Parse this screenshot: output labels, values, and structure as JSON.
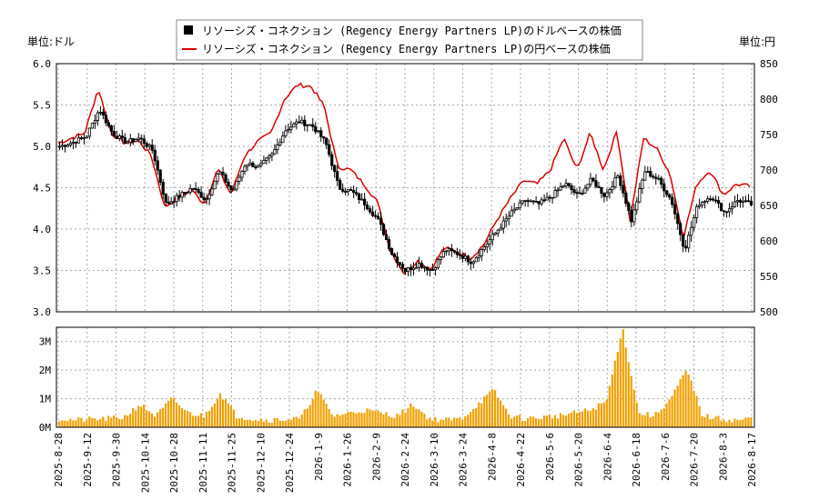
{
  "chart_data": {
    "type": "candlestick+line+bar",
    "legend": {
      "placement": "top-center",
      "entries": [
        {
          "name": "リソーシズ・コネクション (Regency Energy Partners LP)のドルベースの株価",
          "color": "#000000",
          "marker": "square"
        },
        {
          "name": "リソーシズ・コネクション (Regency Energy Partners LP)の円ベースの株価",
          "color": "#dd0000",
          "marker": "line"
        }
      ]
    },
    "left_axis": {
      "label": "単位:ドル",
      "ylim": [
        3.0,
        6.0
      ],
      "ticks": [
        "3.0",
        "3.5",
        "4.0",
        "4.5",
        "5.0",
        "5.5",
        "6.0"
      ]
    },
    "right_axis": {
      "label": "単位:円",
      "ylim": [
        500,
        850
      ],
      "ticks": [
        "500",
        "550",
        "600",
        "650",
        "700",
        "750",
        "800",
        "850"
      ]
    },
    "volume_axis": {
      "ylim": [
        0,
        3500000
      ],
      "ticks": [
        "0M",
        "1M",
        "2M",
        "3M"
      ]
    },
    "grid": true,
    "x_ticks": [
      "2025-8-28",
      "2025-9-12",
      "2025-9-30",
      "2025-10-14",
      "2025-10-28",
      "2025-11-11",
      "2025-11-25",
      "2025-12-10",
      "2025-12-24",
      "2026-1-9",
      "2026-1-26",
      "2026-2-9",
      "2026-2-24",
      "2026-3-10",
      "2026-3-24",
      "2026-4-8",
      "2026-4-22",
      "2026-5-6",
      "2026-5-20",
      "2026-6-4",
      "2026-6-18",
      "2026-7-6",
      "2026-7-20",
      "2026-8-3",
      "2026-8-17"
    ],
    "price_usd_keypoints": [
      5.0,
      5.05,
      5.12,
      5.45,
      5.15,
      5.05,
      5.1,
      4.95,
      4.3,
      4.4,
      4.5,
      4.35,
      4.7,
      4.45,
      4.8,
      4.75,
      4.9,
      5.2,
      5.3,
      5.25,
      5.05,
      4.5,
      4.45,
      4.3,
      4.1,
      3.7,
      3.5,
      3.58,
      3.5,
      3.75,
      3.7,
      3.6,
      3.8,
      4.0,
      4.2,
      4.35,
      4.3,
      4.4,
      4.55,
      4.4,
      4.6,
      4.4,
      4.65,
      4.1,
      4.7,
      4.6,
      4.35,
      3.75,
      4.3,
      4.4,
      4.2,
      4.35,
      4.3
    ],
    "price_jpy_keypoints": [
      738,
      745,
      752,
      815,
      752,
      738,
      742,
      720,
      648,
      660,
      672,
      652,
      702,
      665,
      720,
      740,
      752,
      800,
      820,
      818,
      790,
      705,
      700,
      680,
      655,
      585,
      555,
      572,
      560,
      590,
      585,
      575,
      595,
      630,
      660,
      685,
      680,
      700,
      745,
      700,
      752,
      700,
      755,
      628,
      745,
      730,
      695,
      605,
      680,
      700,
      665,
      680,
      677
    ],
    "volume_keypoints": [
      300000,
      250000,
      280000,
      300000,
      350000,
      800000,
      400000,
      1000000,
      500000,
      400000,
      1200000,
      400000,
      300000,
      250000,
      280000,
      300000,
      1300000,
      400000,
      500000,
      600000,
      500000,
      400000,
      800000,
      300000,
      250000,
      300000,
      800000,
      1300000,
      400000,
      300000,
      350000,
      400000,
      500000,
      600000,
      900000,
      3500000,
      500000,
      400000,
      1000000,
      2000000,
      400000,
      300000,
      250000,
      300000
    ]
  }
}
